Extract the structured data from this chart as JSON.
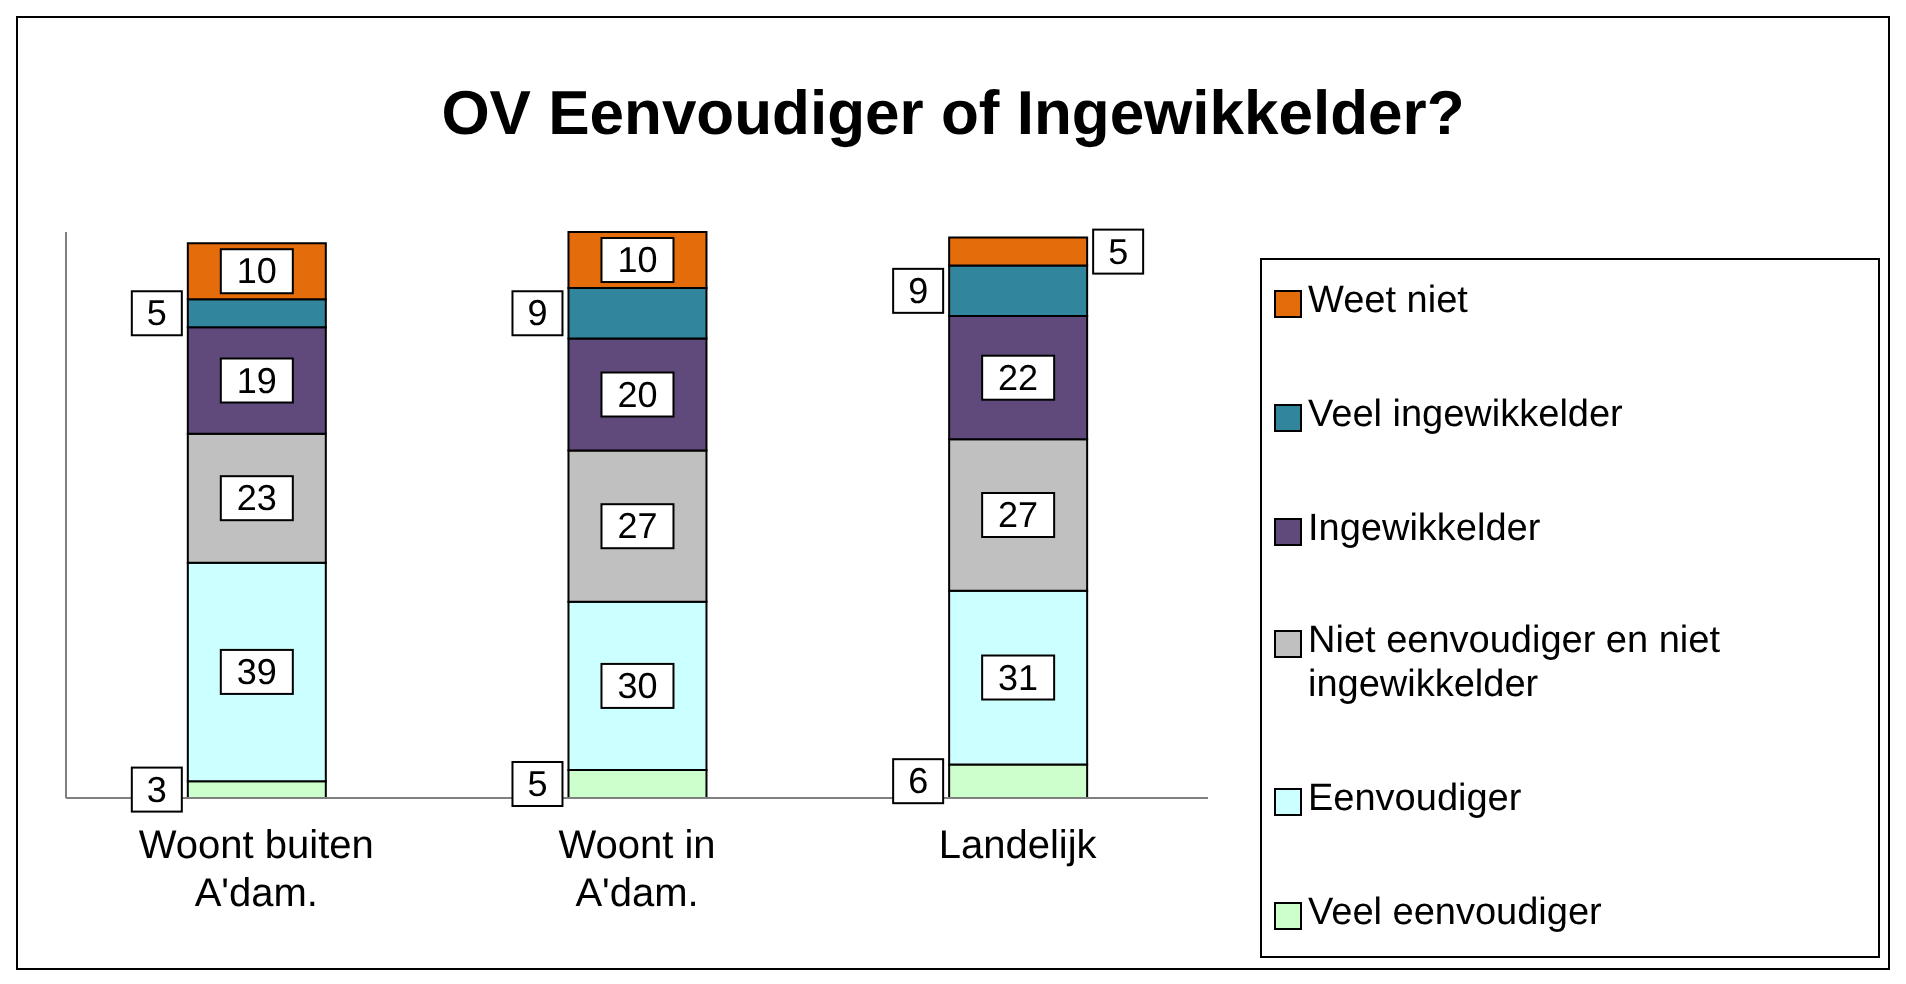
{
  "chart_data": {
    "type": "bar",
    "title": "OV Eenvoudiger of Ingewikkelder?",
    "categories": [
      "Woont buiten A'dam.",
      "Woont in A'dam.",
      "Landelijk"
    ],
    "stacked": true,
    "data_labels": true,
    "legend": "right",
    "series": [
      {
        "name": "Veel eenvoudiger",
        "color": "#ccffcc",
        "values": [
          3,
          5,
          6
        ]
      },
      {
        "name": "Eenvoudiger",
        "color": "#ccffff",
        "values": [
          39,
          30,
          31
        ]
      },
      {
        "name": "Niet eenvoudiger en niet ingewikkelder",
        "color": "#c0c0c0",
        "values": [
          23,
          27,
          27
        ]
      },
      {
        "name": "Ingewikkelder",
        "color": "#604a7b",
        "values": [
          19,
          20,
          22
        ]
      },
      {
        "name": "Veel ingewikkelder",
        "color": "#31859c",
        "values": [
          5,
          9,
          9
        ]
      },
      {
        "name": "Weet niet",
        "color": "#e46c0a",
        "values": [
          10,
          10,
          5
        ]
      }
    ]
  }
}
